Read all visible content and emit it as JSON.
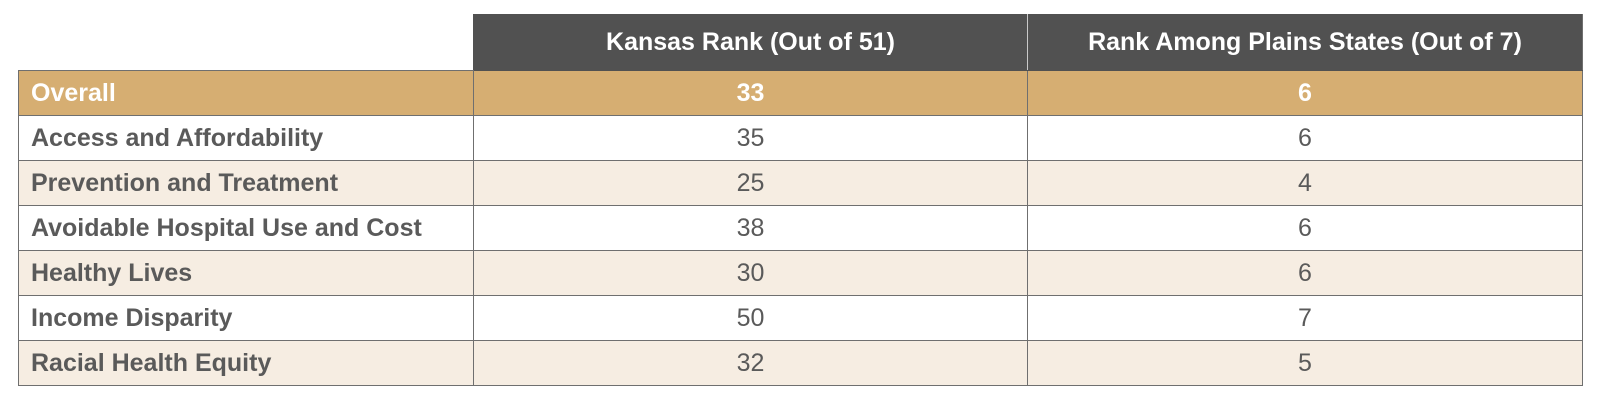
{
  "table": {
    "headers": [
      "",
      "Kansas Rank (Out of 51)",
      "Rank Among Plains States (Out of 7)"
    ],
    "rows": [
      {
        "label": "Overall",
        "kansas_rank": "33",
        "plains_rank": "6"
      },
      {
        "label": "Access and Affordability",
        "kansas_rank": "35",
        "plains_rank": "6"
      },
      {
        "label": "Prevention and Treatment",
        "kansas_rank": "25",
        "plains_rank": "4"
      },
      {
        "label": "Avoidable Hospital Use and Cost",
        "kansas_rank": "38",
        "plains_rank": "6"
      },
      {
        "label": "Healthy Lives",
        "kansas_rank": "30",
        "plains_rank": "6"
      },
      {
        "label": "Income Disparity",
        "kansas_rank": "50",
        "plains_rank": "7"
      },
      {
        "label": "Racial Health Equity",
        "kansas_rank": "32",
        "plains_rank": "5"
      }
    ]
  },
  "colors": {
    "header_bg": "#515151",
    "overall_bg": "#d6ae72",
    "stripe_bg": "#f6ede2",
    "text": "#5a5a5a"
  }
}
